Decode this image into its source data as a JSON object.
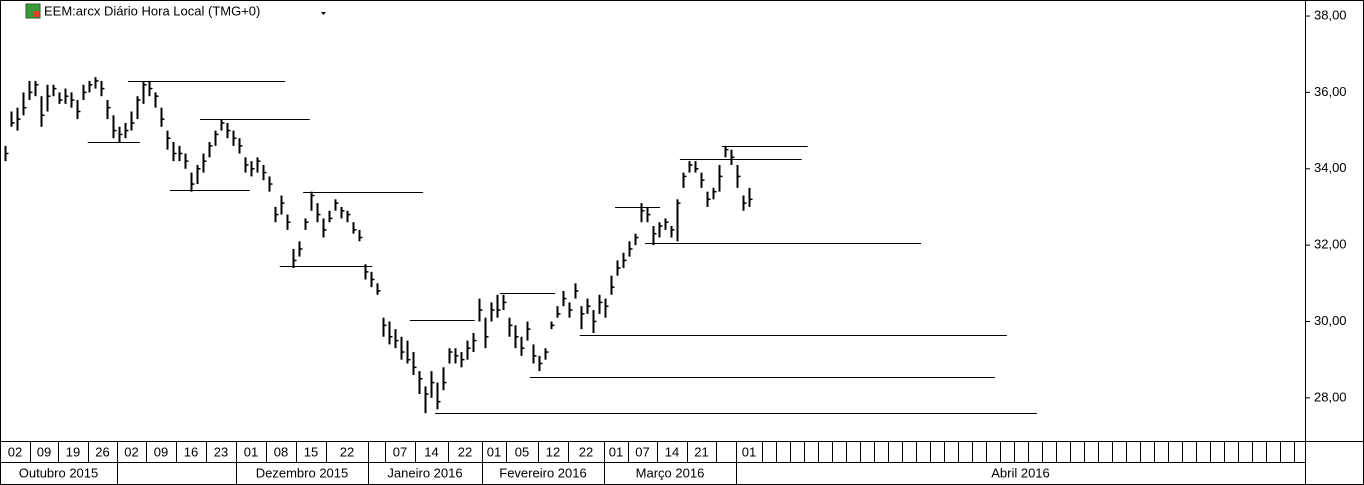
{
  "chart_data": {
    "type": "ohlc",
    "title": "EEM:arcx Diário Hora Local (TMG+0)",
    "bars": [
      [
        34.6,
        34.2,
        34.4
      ],
      [
        35.5,
        35.1,
        35.2
      ],
      [
        35.6,
        35.0,
        35.3
      ],
      [
        36.0,
        35.4,
        35.6
      ],
      [
        36.3,
        35.8,
        36.0
      ],
      [
        36.3,
        35.9,
        36.2
      ],
      [
        35.9,
        35.1,
        35.4
      ],
      [
        36.2,
        35.5,
        35.9
      ],
      [
        36.2,
        35.9,
        36.1
      ],
      [
        36.0,
        35.7,
        35.8
      ],
      [
        36.1,
        35.7,
        35.9
      ],
      [
        36.0,
        35.6,
        35.8
      ],
      [
        35.8,
        35.3,
        35.5
      ],
      [
        36.2,
        35.8,
        36.0
      ],
      [
        36.3,
        36.0,
        36.2
      ],
      [
        36.4,
        36.1,
        36.3
      ],
      [
        36.3,
        35.9,
        36.1
      ],
      [
        35.8,
        35.3,
        35.6
      ],
      [
        35.4,
        34.8,
        35.0
      ],
      [
        35.1,
        34.7,
        34.9
      ],
      [
        35.2,
        34.8,
        35.0
      ],
      [
        35.5,
        35.0,
        35.2
      ],
      [
        35.9,
        35.3,
        35.8
      ],
      [
        36.3,
        35.7,
        36.2
      ],
      [
        36.3,
        35.9,
        36.1
      ],
      [
        36.0,
        35.6,
        35.9
      ],
      [
        35.6,
        35.1,
        35.3
      ],
      [
        35.0,
        34.5,
        34.8
      ],
      [
        34.7,
        34.2,
        34.4
      ],
      [
        34.6,
        34.2,
        34.4
      ],
      [
        34.4,
        34.0,
        34.2
      ],
      [
        33.9,
        33.4,
        33.6
      ],
      [
        34.1,
        33.6,
        34.0
      ],
      [
        34.4,
        33.9,
        34.2
      ],
      [
        34.7,
        34.3,
        34.6
      ],
      [
        35.0,
        34.6,
        34.9
      ],
      [
        35.3,
        35.0,
        35.2
      ],
      [
        35.2,
        34.8,
        35.0
      ],
      [
        35.0,
        34.6,
        34.8
      ],
      [
        34.8,
        34.4,
        34.6
      ],
      [
        34.3,
        33.9,
        34.1
      ],
      [
        34.2,
        33.8,
        34.0
      ],
      [
        34.3,
        33.9,
        34.2
      ],
      [
        34.1,
        33.7,
        33.9
      ],
      [
        33.8,
        33.4,
        33.6
      ],
      [
        33.0,
        32.6,
        32.8
      ],
      [
        33.3,
        32.8,
        33.1
      ],
      [
        32.8,
        32.4,
        32.6
      ],
      [
        31.9,
        31.4,
        31.6
      ],
      [
        32.1,
        31.7,
        31.9
      ],
      [
        32.7,
        32.4,
        32.6
      ],
      [
        33.4,
        32.9,
        33.3
      ],
      [
        33.1,
        32.6,
        32.8
      ],
      [
        32.7,
        32.2,
        32.4
      ],
      [
        32.9,
        32.6,
        32.7
      ],
      [
        33.2,
        32.9,
        33.1
      ],
      [
        33.0,
        32.7,
        32.9
      ],
      [
        32.9,
        32.6,
        32.8
      ],
      [
        32.6,
        32.3,
        32.4
      ],
      [
        32.4,
        32.1,
        32.2
      ],
      [
        31.5,
        31.1,
        31.3
      ],
      [
        31.3,
        30.9,
        31.1
      ],
      [
        31.0,
        30.7,
        30.8
      ],
      [
        30.1,
        29.6,
        29.9
      ],
      [
        30.0,
        29.4,
        29.6
      ],
      [
        29.8,
        29.3,
        29.5
      ],
      [
        29.6,
        29.0,
        29.2
      ],
      [
        29.5,
        28.9,
        29.0
      ],
      [
        29.2,
        28.6,
        28.8
      ],
      [
        28.7,
        28.1,
        28.5
      ],
      [
        28.3,
        27.6,
        28.1
      ],
      [
        28.7,
        28.0,
        28.4
      ],
      [
        28.4,
        27.7,
        27.9
      ],
      [
        28.8,
        28.2,
        28.4
      ],
      [
        29.3,
        28.9,
        29.2
      ],
      [
        29.3,
        28.9,
        29.1
      ],
      [
        29.2,
        28.8,
        29.0
      ],
      [
        29.5,
        29.0,
        29.3
      ],
      [
        29.7,
        29.2,
        29.5
      ],
      [
        30.6,
        30.0,
        30.3
      ],
      [
        30.1,
        29.3,
        29.6
      ],
      [
        30.5,
        30.0,
        30.3
      ],
      [
        30.7,
        30.1,
        30.3
      ],
      [
        30.7,
        30.3,
        30.5
      ],
      [
        30.1,
        29.6,
        29.9
      ],
      [
        29.9,
        29.3,
        29.6
      ],
      [
        29.6,
        29.1,
        29.3
      ],
      [
        30.0,
        29.5,
        29.8
      ],
      [
        29.4,
        28.9,
        29.1
      ],
      [
        29.1,
        28.7,
        28.9
      ],
      [
        29.3,
        29.0,
        29.2
      ],
      [
        30.0,
        29.8,
        29.9
      ],
      [
        30.4,
        30.1,
        30.2
      ],
      [
        30.8,
        30.4,
        30.6
      ],
      [
        30.5,
        30.1,
        30.3
      ],
      [
        31.0,
        30.6,
        30.8
      ],
      [
        30.4,
        29.8,
        30.2
      ],
      [
        30.6,
        30.2,
        30.4
      ],
      [
        30.3,
        29.7,
        30.0
      ],
      [
        30.7,
        30.2,
        30.5
      ],
      [
        30.6,
        30.1,
        30.4
      ],
      [
        31.2,
        30.7,
        30.9
      ],
      [
        31.6,
        31.2,
        31.4
      ],
      [
        31.8,
        31.4,
        31.6
      ],
      [
        32.1,
        31.7,
        31.9
      ],
      [
        32.3,
        32.0,
        32.2
      ],
      [
        33.1,
        32.6,
        32.9
      ],
      [
        33.0,
        32.6,
        32.8
      ],
      [
        32.5,
        32.0,
        32.3
      ],
      [
        32.6,
        32.2,
        32.5
      ],
      [
        32.7,
        32.4,
        32.6
      ],
      [
        32.5,
        32.2,
        32.4
      ],
      [
        33.2,
        32.1,
        33.1
      ],
      [
        33.9,
        33.5,
        33.8
      ],
      [
        34.2,
        33.9,
        34.1
      ],
      [
        34.2,
        33.9,
        34.0
      ],
      [
        33.9,
        33.5,
        33.7
      ],
      [
        33.4,
        33.0,
        33.2
      ],
      [
        33.5,
        33.2,
        33.4
      ],
      [
        34.1,
        33.4,
        33.8
      ],
      [
        34.6,
        34.3,
        34.5
      ],
      [
        34.5,
        34.1,
        34.3
      ],
      [
        34.1,
        33.5,
        33.8
      ],
      [
        33.3,
        32.9,
        33.1
      ],
      [
        33.5,
        33.0,
        33.2
      ]
    ],
    "levels": [
      {
        "value": 36.3,
        "from": 20.5,
        "to": 46.7
      },
      {
        "value": 35.3,
        "from": 32.5,
        "to": 50.8
      },
      {
        "value": 34.7,
        "from": 13.8,
        "to": 22.5
      },
      {
        "value": 33.45,
        "from": 27.5,
        "to": 40.8
      },
      {
        "value": 33.4,
        "from": 49.7,
        "to": 69.7
      },
      {
        "value": 31.45,
        "from": 45.8,
        "to": 61.2
      },
      {
        "value": 30.05,
        "from": 67.5,
        "to": 78.3
      },
      {
        "value": 30.75,
        "from": 82.5,
        "to": 91.7
      },
      {
        "value": 29.65,
        "from": 95.8,
        "to": 167
      },
      {
        "value": 28.55,
        "from": 87.5,
        "to": 165
      },
      {
        "value": 27.6,
        "from": 71.7,
        "to": 172
      },
      {
        "value": 32.05,
        "from": 106.7,
        "to": 152.7
      },
      {
        "value": 33.0,
        "from": 101.7,
        "to": 109.2
      },
      {
        "value": 34.25,
        "from": 112.5,
        "to": 132.8
      },
      {
        "value": 34.6,
        "from": 119.5,
        "to": 133.8
      }
    ],
    "xlim": [
      -0.83,
      216.7
    ],
    "ylim": [
      26.87,
      38.42
    ],
    "yticks": [
      {
        "value": 28,
        "label": "28,00"
      },
      {
        "value": 30,
        "label": "30,00"
      },
      {
        "value": 32,
        "label": "32,00"
      },
      {
        "value": 34,
        "label": "34,00"
      },
      {
        "value": 36,
        "label": "36,00"
      },
      {
        "value": 38,
        "label": "38,00"
      }
    ],
    "weeks": [
      "02",
      "09",
      "19",
      "26",
      "02",
      "09",
      "16",
      "23",
      "01",
      "08",
      "15",
      "22",
      null,
      "07",
      "14",
      "22",
      "01",
      "05",
      "12",
      "22",
      "01",
      "07",
      "14",
      "21",
      null,
      "01"
    ],
    "months": [
      "Outubro 2015",
      null,
      "Dezembro 2015",
      "Janeiro 2016",
      "Fevereiro 2016",
      "Março 2016",
      "Abril 2016"
    ]
  }
}
